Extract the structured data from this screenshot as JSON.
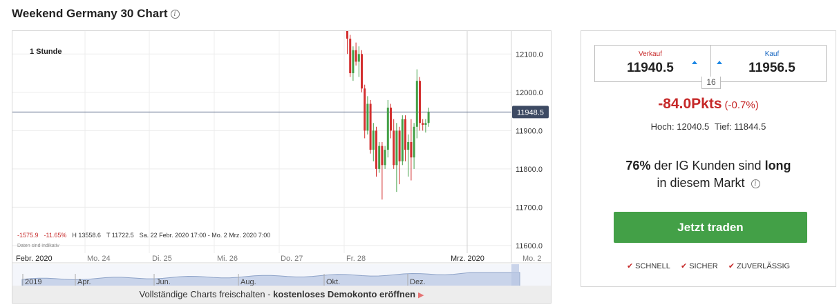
{
  "header": {
    "title": "Weekend Germany 30 Chart",
    "info_icon": "info-icon"
  },
  "chart": {
    "timeframe": "1 Stunde",
    "current_price_label": "11948.5",
    "stats": {
      "change_points": "-1575.9",
      "change_percent": "-11.65%",
      "high": "H 13558.6",
      "low": "T 11722.5",
      "range": "Sa. 22 Febr. 2020 17:00 - Mo. 2 Mrz. 2020 7:00",
      "note": "Daten sind indikativ"
    },
    "y_ticks": [
      "12100.0",
      "12000.0",
      "11900.0",
      "11800.0",
      "11700.0",
      "11600.0"
    ],
    "x_ticks": [
      "Febr. 2020",
      "Mo. 24",
      "Di. 25",
      "Mi. 26",
      "Do. 27",
      "Fr. 28",
      "Mrz. 2020",
      "Mo. 2"
    ],
    "nav_ticks": [
      "2019",
      "Apr.",
      "Jun.",
      "Aug.",
      "Okt.",
      "Dez."
    ],
    "unlock": {
      "prefix": "Vollständige Charts freischalten - ",
      "link": "kostenloses Demokonto eröffnen",
      "arrow": "▶"
    },
    "colors": {
      "up": "#43a047",
      "down": "#d32f2f",
      "price_line": "#5c6b8a",
      "price_tag": "#3d4a63"
    }
  },
  "chart_data": {
    "type": "candlestick",
    "y_range": [
      11580,
      12160
    ],
    "current_price": 11948.5,
    "candles": [
      [
        12160,
        12170,
        12100,
        12140
      ],
      [
        12140,
        12150,
        12040,
        12050
      ],
      [
        12050,
        12120,
        12030,
        12110
      ],
      [
        12110,
        12130,
        12070,
        12080
      ],
      [
        12080,
        12120,
        12040,
        12100
      ],
      [
        12100,
        12110,
        12000,
        12010
      ],
      [
        12010,
        12020,
        11880,
        11900
      ],
      [
        11900,
        11990,
        11890,
        11970
      ],
      [
        11970,
        11980,
        11840,
        11850
      ],
      [
        11850,
        11920,
        11820,
        11900
      ],
      [
        11900,
        11910,
        11780,
        11800
      ],
      [
        11800,
        11870,
        11790,
        11860
      ],
      [
        11860,
        11870,
        11720,
        11810
      ],
      [
        11810,
        11860,
        11800,
        11850
      ],
      [
        11850,
        11980,
        11830,
        11960
      ],
      [
        11960,
        11970,
        11880,
        11900
      ],
      [
        11900,
        11930,
        11800,
        11810
      ],
      [
        11810,
        11920,
        11740,
        11900
      ],
      [
        11900,
        11910,
        11760,
        11820
      ],
      [
        11820,
        11940,
        11810,
        11930
      ],
      [
        11930,
        11940,
        11820,
        11850
      ],
      [
        11850,
        11890,
        11780,
        11870
      ],
      [
        11870,
        11930,
        11770,
        11830
      ],
      [
        11830,
        11920,
        11800,
        11910
      ],
      [
        11910,
        12060,
        11880,
        12030
      ],
      [
        12030,
        12040,
        11900,
        11920
      ],
      [
        11920,
        11930,
        11900,
        11915
      ],
      [
        11915,
        11930,
        11895,
        11920
      ],
      [
        11920,
        11960,
        11910,
        11948.5
      ]
    ]
  },
  "quote": {
    "sell_label": "Verkauf",
    "sell_value": "11940.5",
    "buy_label": "Kauf",
    "buy_value": "11956.5",
    "spread": "16"
  },
  "change": {
    "points": "-84.0Pkts",
    "percent": "(-0.7%)"
  },
  "hilo": {
    "high": "Hoch: 12040.5",
    "low": "Tief: 11844.5"
  },
  "sentiment": {
    "percent": "76%",
    "text1": " der IG Kunden sind ",
    "direction": "long",
    "text2": "in diesem Markt"
  },
  "trade_button": "Jetzt traden",
  "features": [
    {
      "label": "SCHNELL"
    },
    {
      "label": "SICHER"
    },
    {
      "label": "ZUVERLÄSSIG"
    }
  ]
}
